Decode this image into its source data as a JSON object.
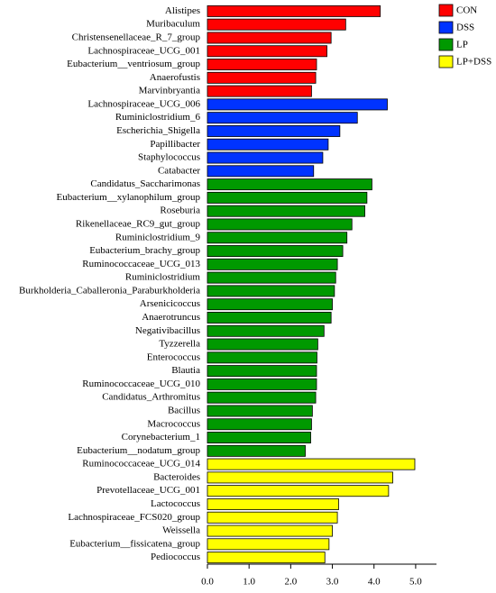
{
  "chart_data": {
    "type": "bar",
    "orientation": "horizontal",
    "xlim": [
      0,
      5.5
    ],
    "xticks": [
      {
        "value": 0,
        "label": "0.0"
      },
      {
        "value": 1,
        "label": "1.0"
      },
      {
        "value": 2,
        "label": "2.0"
      },
      {
        "value": 3,
        "label": "3.0"
      },
      {
        "value": 4,
        "label": "4.0"
      },
      {
        "value": 5,
        "label": "5.0"
      }
    ],
    "legend_position": "top-right",
    "series": [
      {
        "name": "CON",
        "color": "#ff0000",
        "categories": [
          "Alistipes",
          "Muribaculum",
          "Christensenellaceae_R_7_group",
          "Lachnospiraceae_UCG_001",
          "Eubacterium__ventriosum_group",
          "Anaerofustis",
          "Marvinbryantia"
        ],
        "values": [
          4.15,
          3.32,
          2.97,
          2.87,
          2.62,
          2.6,
          2.5
        ]
      },
      {
        "name": "DSS",
        "color": "#0033ff",
        "categories": [
          "Lachnospiraceae_UCG_006",
          "Ruminiclostridium_6",
          "Escherichia_Shigella",
          "Papillibacter",
          "Staphylococcus",
          "Catabacter"
        ],
        "values": [
          4.32,
          3.6,
          3.18,
          2.9,
          2.77,
          2.55
        ]
      },
      {
        "name": "LP",
        "color": "#009900",
        "categories": [
          "Candidatus_Saccharimonas",
          "Eubacterium__xylanophilum_group",
          "Roseburia",
          "Rikenellaceae_RC9_gut_group",
          "Ruminiclostridium_9",
          "Eubacterium_brachy_group",
          "Ruminococcaceae_UCG_013",
          "Ruminiclostridium",
          "Burkholderia_Caballeronia_Paraburkholderia",
          "Arsenicicoccus",
          "Anaerotruncus",
          "Negativibacillus",
          "Tyzzerella",
          "Enterococcus",
          "Blautia",
          "Ruminococcaceae_UCG_010",
          "Candidatus_Arthromitus",
          "Bacillus",
          "Macrococcus",
          "Corynebacterium_1",
          "Eubacterium__nodatum_group"
        ],
        "values": [
          3.95,
          3.83,
          3.78,
          3.47,
          3.35,
          3.25,
          3.12,
          3.08,
          3.05,
          3.0,
          2.97,
          2.8,
          2.65,
          2.63,
          2.62,
          2.62,
          2.6,
          2.52,
          2.5,
          2.48,
          2.35
        ]
      },
      {
        "name": "LP+DSS",
        "color": "#ffff00",
        "categories": [
          "Ruminococcaceae_UCG_014",
          "Bacteroides",
          "Prevotellaceae_UCG_001",
          "Lactococcus",
          "Lachnospiraceae_FCS020_group",
          "Weissella",
          "Eubacterium__fissicatena_group",
          "Pediococcus"
        ],
        "values": [
          4.98,
          4.45,
          4.35,
          3.15,
          3.12,
          3.0,
          2.92,
          2.82
        ]
      }
    ]
  }
}
